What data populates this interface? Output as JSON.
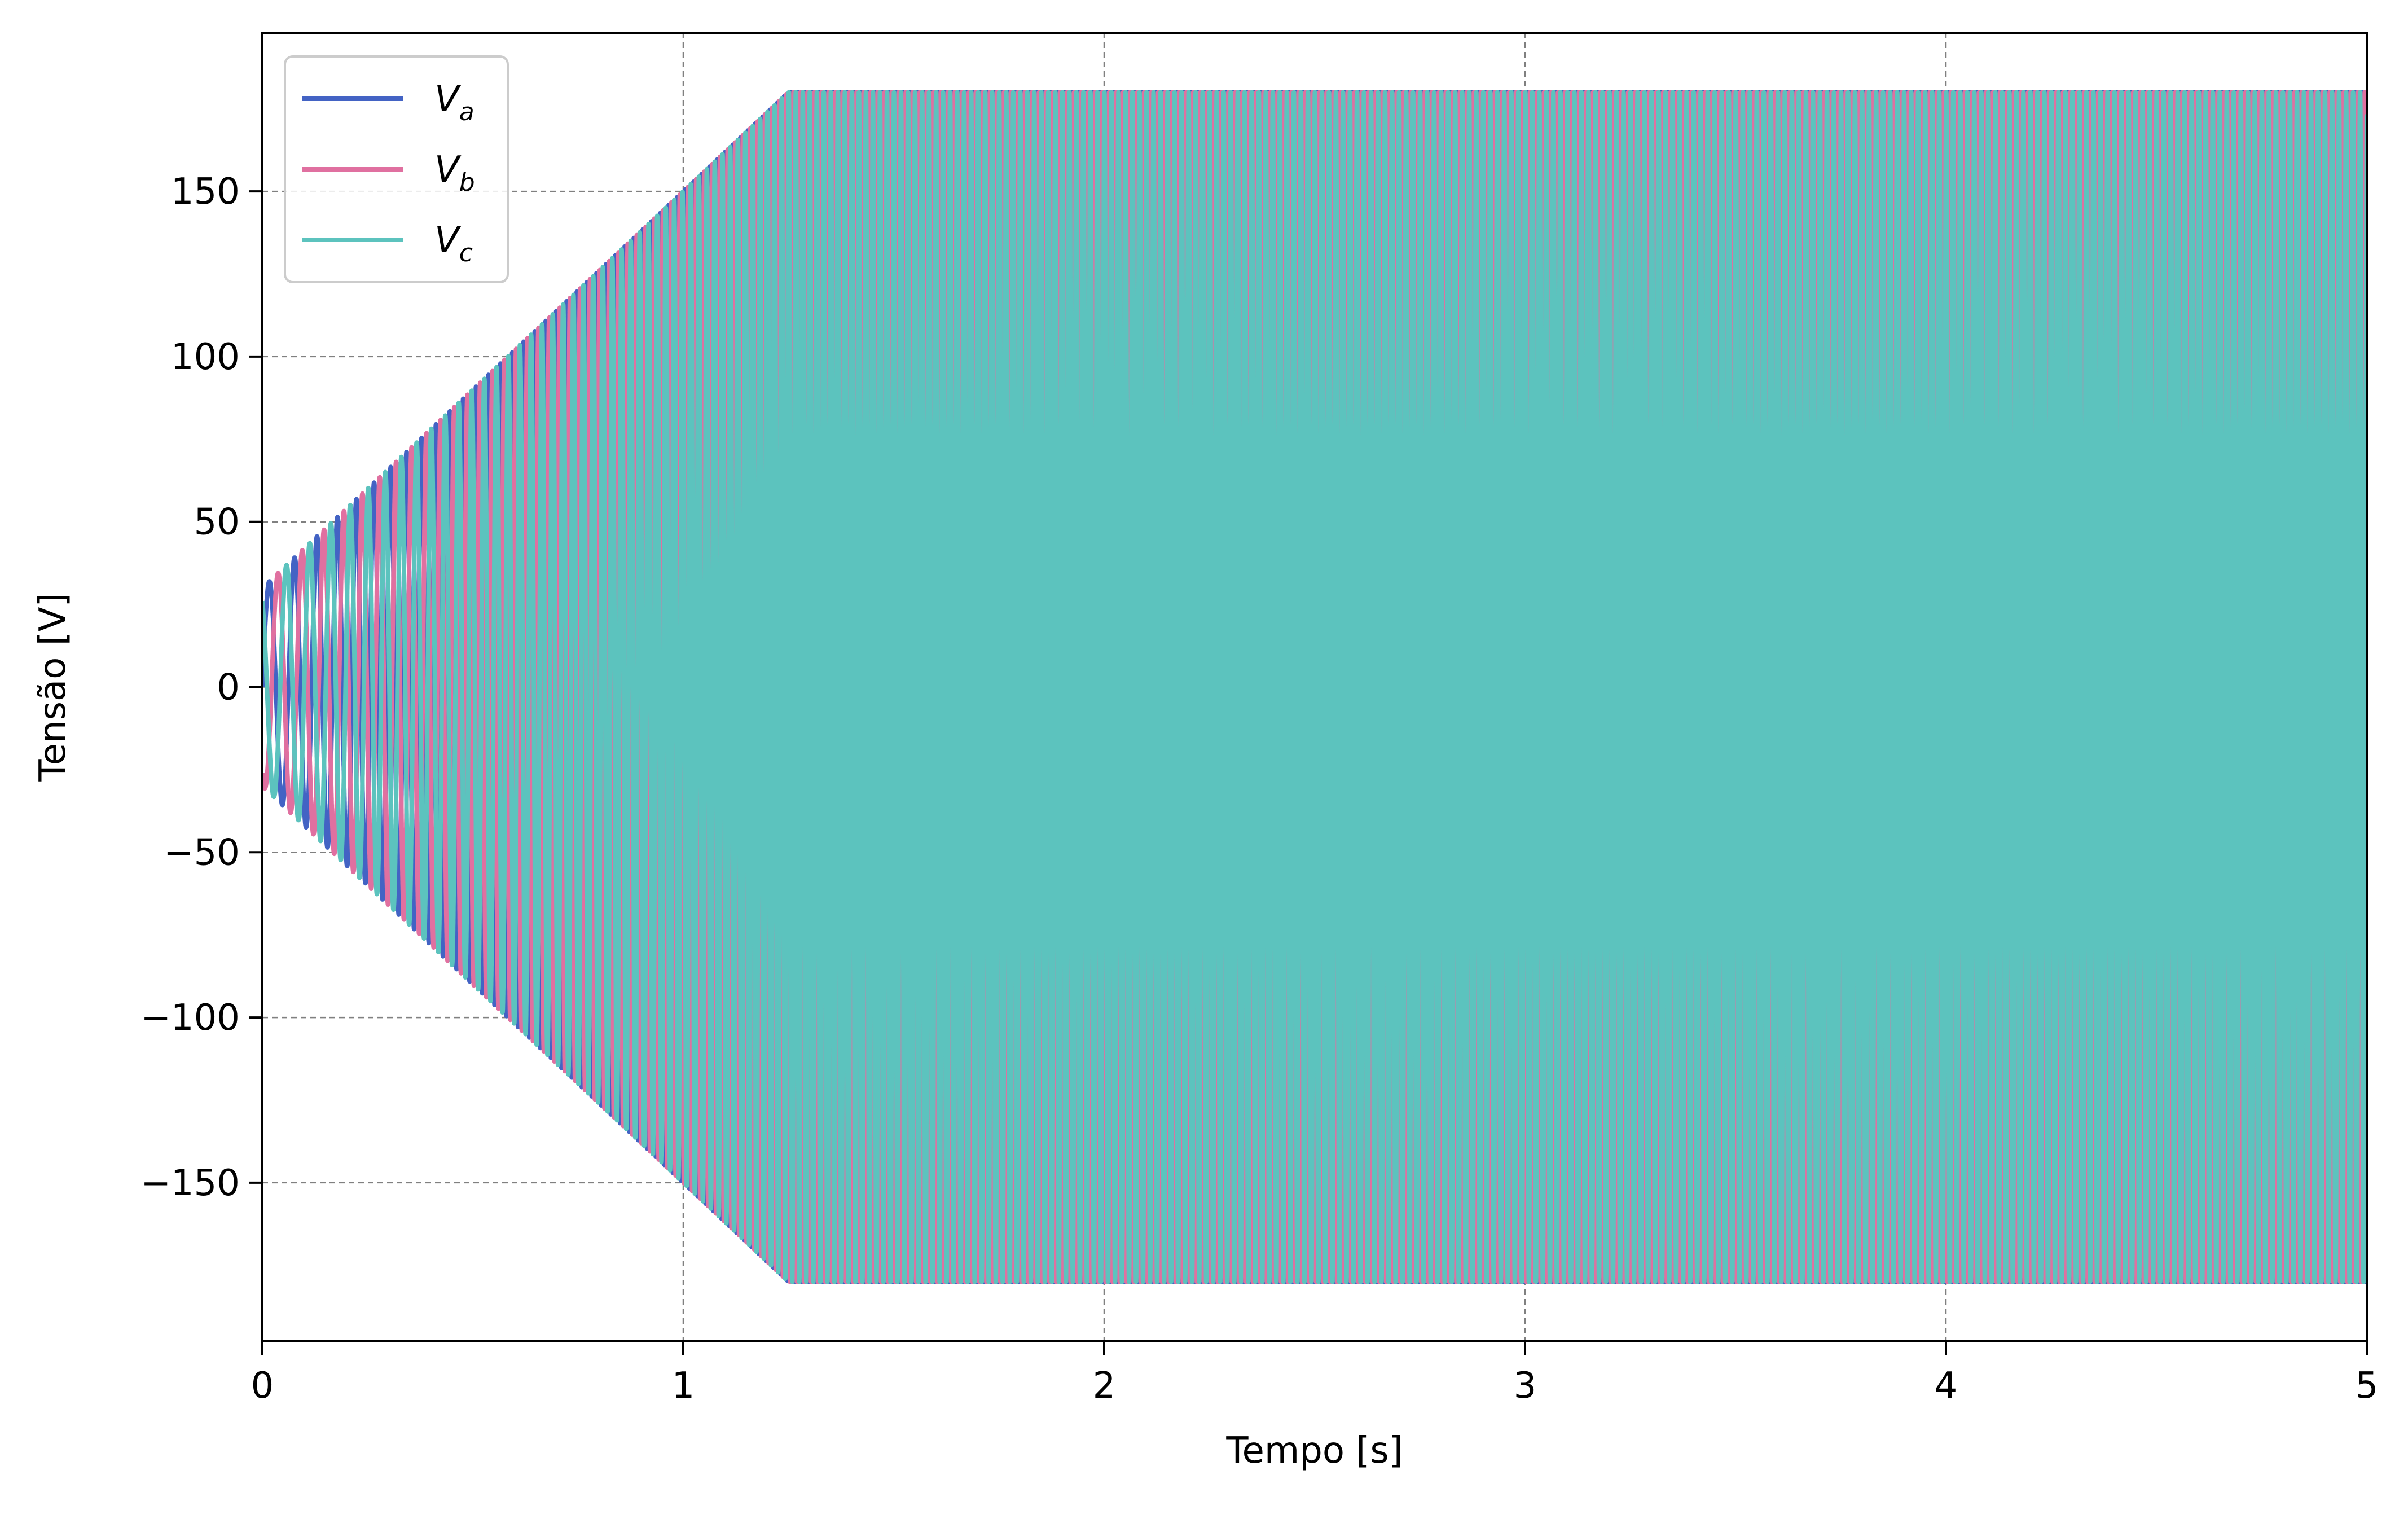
{
  "chart_data": {
    "type": "line",
    "title": "",
    "xlabel": "Tempo [s]",
    "ylabel": "Tensão [V]",
    "xlim": [
      0,
      5
    ],
    "ylim": [
      -198,
      198
    ],
    "xticks": [
      0,
      1,
      2,
      3,
      4,
      5
    ],
    "xtick_labels": [
      "0",
      "1",
      "2",
      "3",
      "4",
      "5"
    ],
    "yticks": [
      -150,
      -100,
      -50,
      0,
      50,
      100,
      150
    ],
    "ytick_labels": [
      "−150",
      "−100",
      "−50",
      "0",
      "50",
      "100",
      "150"
    ],
    "grid": true,
    "legend_position": "top-left",
    "envelope": {
      "initial_amplitude": 30,
      "final_amplitude": 180,
      "ramp_end_time": 1.25,
      "initial_frequency_hz": 15,
      "final_frequency_hz": 60,
      "phase_shift_deg": 120
    },
    "series": [
      {
        "name": "V",
        "subscript": "a",
        "color": "#4363c4",
        "phase_deg": 0
      },
      {
        "name": "V",
        "subscript": "b",
        "color": "#e070a0",
        "phase_deg": -120
      },
      {
        "name": "V",
        "subscript": "c",
        "color": "#5cc3be",
        "phase_deg": 120
      }
    ]
  }
}
